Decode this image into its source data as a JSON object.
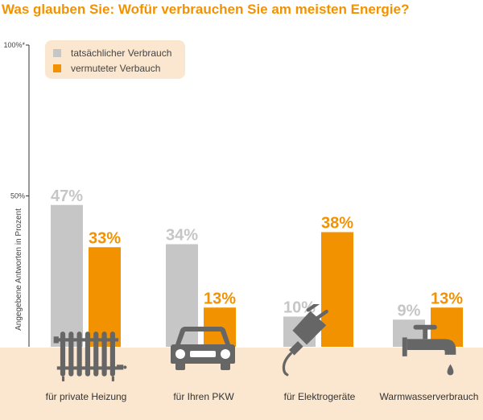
{
  "title": "Was glauben Sie: Wofür verbrauchen Sie am meisten Energie?",
  "colors": {
    "actual": "#c6c6c6",
    "estimated": "#f39200",
    "ground": "#fbe7cf",
    "icon": "#666666",
    "axis": "#333333",
    "text": "#444444"
  },
  "chart_data": {
    "type": "bar",
    "title": "Was glauben Sie: Wofür verbrauchen Sie am meisten Energie?",
    "ylabel": "Angegebene Antworten in Prozent",
    "ylim": [
      0,
      100
    ],
    "yticks": [
      {
        "value": 100,
        "label": "100%*"
      },
      {
        "value": 50,
        "label": "50%"
      }
    ],
    "categories": [
      "für private Heizung",
      "für Ihren PKW",
      "für Elektrogeräte",
      "Warmwasserverbrauch"
    ],
    "category_icons": [
      "radiator-icon",
      "car-icon",
      "plug-icon",
      "faucet-icon"
    ],
    "series": [
      {
        "name": "tatsächlicher Verbrauch",
        "values": [
          47,
          34,
          10,
          9
        ],
        "labels": [
          "47%",
          "34%",
          "10%",
          "9%"
        ],
        "color": "#c6c6c6"
      },
      {
        "name": "vermuteter Verbauch",
        "values": [
          33,
          13,
          38,
          13
        ],
        "labels": [
          "33%",
          "13%",
          "38%",
          "13%"
        ],
        "color": "#f39200"
      }
    ],
    "legend_position": "top-left",
    "grid": false
  }
}
